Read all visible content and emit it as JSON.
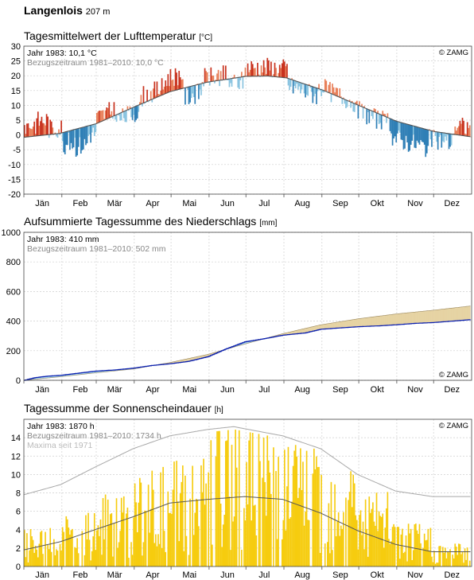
{
  "station": {
    "name": "Langenlois",
    "elevation": "207 m"
  },
  "copyright": "© ZAMG",
  "months": [
    "Jän",
    "Feb",
    "Mär",
    "Apr",
    "Mai",
    "Jun",
    "Jul",
    "Aug",
    "Sep",
    "Okt",
    "Nov",
    "Dez"
  ],
  "colors": {
    "warm": "#e8805a",
    "warm_strong": "#c8321e",
    "cool": "#8ac4e0",
    "cool_strong": "#2f7fb6",
    "normal": "#555555",
    "precip_year": "#0a1fae",
    "precip_above": "#a9d6ee",
    "precip_below": "#e6d3a3",
    "sun_bar": "#f6cc0f",
    "sun_max": "#a8a8a8",
    "sun_normal": "#555555"
  },
  "chart_data": [
    {
      "type": "bar",
      "title": "Tagesmittelwert der Lufttemperatur",
      "unit": "[°C]",
      "note_year": "Jahr 1983: 10,1 °C",
      "note_ref": "Bezugszeitraum 1981–2010: 10,0 °C",
      "ylim": [
        -20,
        30
      ],
      "yticks": [
        -20,
        -15,
        -10,
        -5,
        0,
        5,
        10,
        15,
        20,
        25,
        30
      ],
      "xlabels": [
        "Jän",
        "Feb",
        "Mär",
        "Apr",
        "Mai",
        "Jun",
        "Jul",
        "Aug",
        "Sep",
        "Okt",
        "Nov",
        "Dez"
      ],
      "normal_curve": {
        "doy": [
          1,
          30,
          60,
          90,
          120,
          150,
          182,
          200,
          215,
          245,
          275,
          305,
          335,
          365
        ],
        "value": [
          -0.8,
          0.5,
          3.8,
          9.3,
          14.6,
          17.8,
          19.8,
          19.9,
          19.3,
          15.1,
          9.8,
          4.6,
          1.2,
          -0.6
        ]
      },
      "daily_anomaly_by_period": [
        {
          "from": 1,
          "to": 10,
          "anom": 4
        },
        {
          "from": 11,
          "to": 20,
          "anom": 5
        },
        {
          "from": 21,
          "to": 31,
          "anom": 2
        },
        {
          "from": 32,
          "to": 42,
          "anom": -4
        },
        {
          "from": 43,
          "to": 52,
          "anom": -6
        },
        {
          "from": 53,
          "to": 59,
          "anom": -3
        },
        {
          "from": 60,
          "to": 75,
          "anom": 2
        },
        {
          "from": 76,
          "to": 95,
          "anom": -2
        },
        {
          "from": 96,
          "to": 115,
          "anom": 2.5
        },
        {
          "from": 116,
          "to": 130,
          "anom": 5
        },
        {
          "from": 131,
          "to": 145,
          "anom": -3
        },
        {
          "from": 146,
          "to": 165,
          "anom": 1.5
        },
        {
          "from": 166,
          "to": 180,
          "anom": -1.5
        },
        {
          "from": 181,
          "to": 215,
          "anom": 3
        },
        {
          "from": 216,
          "to": 240,
          "anom": -2.5
        },
        {
          "from": 241,
          "to": 270,
          "anom": 0.5
        },
        {
          "from": 271,
          "to": 300,
          "anom": -2
        },
        {
          "from": 301,
          "to": 330,
          "anom": -6
        },
        {
          "from": 331,
          "to": 350,
          "anom": -3
        },
        {
          "from": 351,
          "to": 365,
          "anom": 3
        }
      ]
    },
    {
      "type": "area",
      "title": "Aufsummierte Tagessumme des Niederschlags",
      "unit": "[mm]",
      "note_year": "Jahr 1983: 410 mm",
      "note_ref": "Bezugszeitraum 1981–2010: 502 mm",
      "ylim": [
        0,
        1000
      ],
      "yticks": [
        0,
        200,
        400,
        600,
        800,
        1000
      ],
      "xlabels": [
        "Jän",
        "Feb",
        "Mär",
        "Apr",
        "Mai",
        "Jun",
        "Jul",
        "Aug",
        "Sep",
        "Okt",
        "Nov",
        "Dez"
      ],
      "reference": {
        "doy": [
          1,
          31,
          59,
          90,
          120,
          151,
          181,
          212,
          243,
          273,
          304,
          334,
          365
        ],
        "value": [
          0,
          24,
          50,
          76,
          120,
          175,
          245,
          315,
          375,
          415,
          448,
          473,
          502
        ]
      },
      "year": {
        "doy": [
          1,
          10,
          20,
          31,
          45,
          59,
          75,
          90,
          105,
          120,
          135,
          151,
          165,
          181,
          196,
          212,
          230,
          243,
          260,
          273,
          290,
          304,
          320,
          334,
          350,
          365
        ],
        "value": [
          0,
          18,
          28,
          34,
          48,
          62,
          70,
          82,
          100,
          112,
          128,
          160,
          210,
          260,
          280,
          305,
          320,
          345,
          355,
          362,
          368,
          375,
          385,
          390,
          400,
          410
        ]
      }
    },
    {
      "type": "bar",
      "title": "Tagessumme der Sonnenscheindauer",
      "unit": "[h]",
      "note_year": "Jahr 1983: 1870 h",
      "note_ref": "Bezugszeitraum 1981–2010: 1734 h",
      "note_max": "Maxima seit 1971",
      "ylim": [
        0,
        16
      ],
      "yticks": [
        0,
        2,
        4,
        6,
        8,
        10,
        12,
        14
      ],
      "xlabels": [
        "Jän",
        "Feb",
        "Mär",
        "Apr",
        "Mai",
        "Jun",
        "Jul",
        "Aug",
        "Sep",
        "Okt",
        "Nov",
        "Dez"
      ],
      "maxima": {
        "doy": [
          1,
          31,
          59,
          90,
          120,
          151,
          172,
          200,
          212,
          243,
          273,
          304,
          334,
          365
        ],
        "value": [
          7.8,
          8.9,
          10.8,
          12.8,
          14.2,
          14.9,
          15.2,
          14.5,
          14.2,
          12.8,
          10.0,
          8.2,
          7.6,
          7.6
        ]
      },
      "normal": {
        "doy": [
          1,
          31,
          59,
          90,
          120,
          151,
          181,
          212,
          243,
          273,
          304,
          334,
          365
        ],
        "value": [
          1.8,
          2.7,
          4.0,
          5.4,
          6.9,
          7.3,
          7.6,
          7.3,
          5.8,
          3.9,
          2.4,
          1.6,
          1.6
        ]
      },
      "daily_level_by_month": [
        2.4,
        3.5,
        4.6,
        6.7,
        7.4,
        9.8,
        10.1,
        8.6,
        7.5,
        4.9,
        2.8,
        1.6
      ]
    }
  ]
}
